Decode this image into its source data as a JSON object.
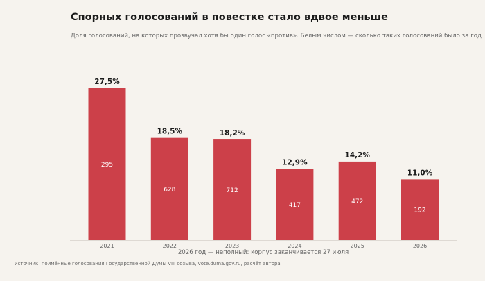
{
  "title": "Спорных голосований в повестке стало вдвое меньше",
  "subtitle": "Доля голосований, на которых прозвучал хотя бы один голос «против». Белым числом — сколько таких голосований было за год",
  "note": "2026 год — неполный: корпус заканчивается 27 июля",
  "source": "источник: поимённые голосования Государственной Думы VIII созыва, vote.duma.gov.ru, расчёт автора",
  "colors": {
    "bar": "#cc4049",
    "background": "#f6f3ee",
    "count_label": "#ffffff"
  },
  "chart_data": {
    "type": "bar",
    "categories": [
      "2021",
      "2022",
      "2023",
      "2024",
      "2025",
      "2026"
    ],
    "values": [
      27.5,
      18.5,
      18.2,
      12.9,
      14.2,
      11.0
    ],
    "value_labels": [
      "27,5%",
      "18,5%",
      "18,2%",
      "12,9%",
      "14,2%",
      "11,0%"
    ],
    "counts": [
      295,
      628,
      712,
      417,
      472,
      192
    ],
    "title": "Спорных голосований в повестке стало вдвое меньше",
    "xlabel": "",
    "ylabel": "",
    "ylim": [
      0,
      27.5
    ],
    "grid": false,
    "legend": "none"
  }
}
